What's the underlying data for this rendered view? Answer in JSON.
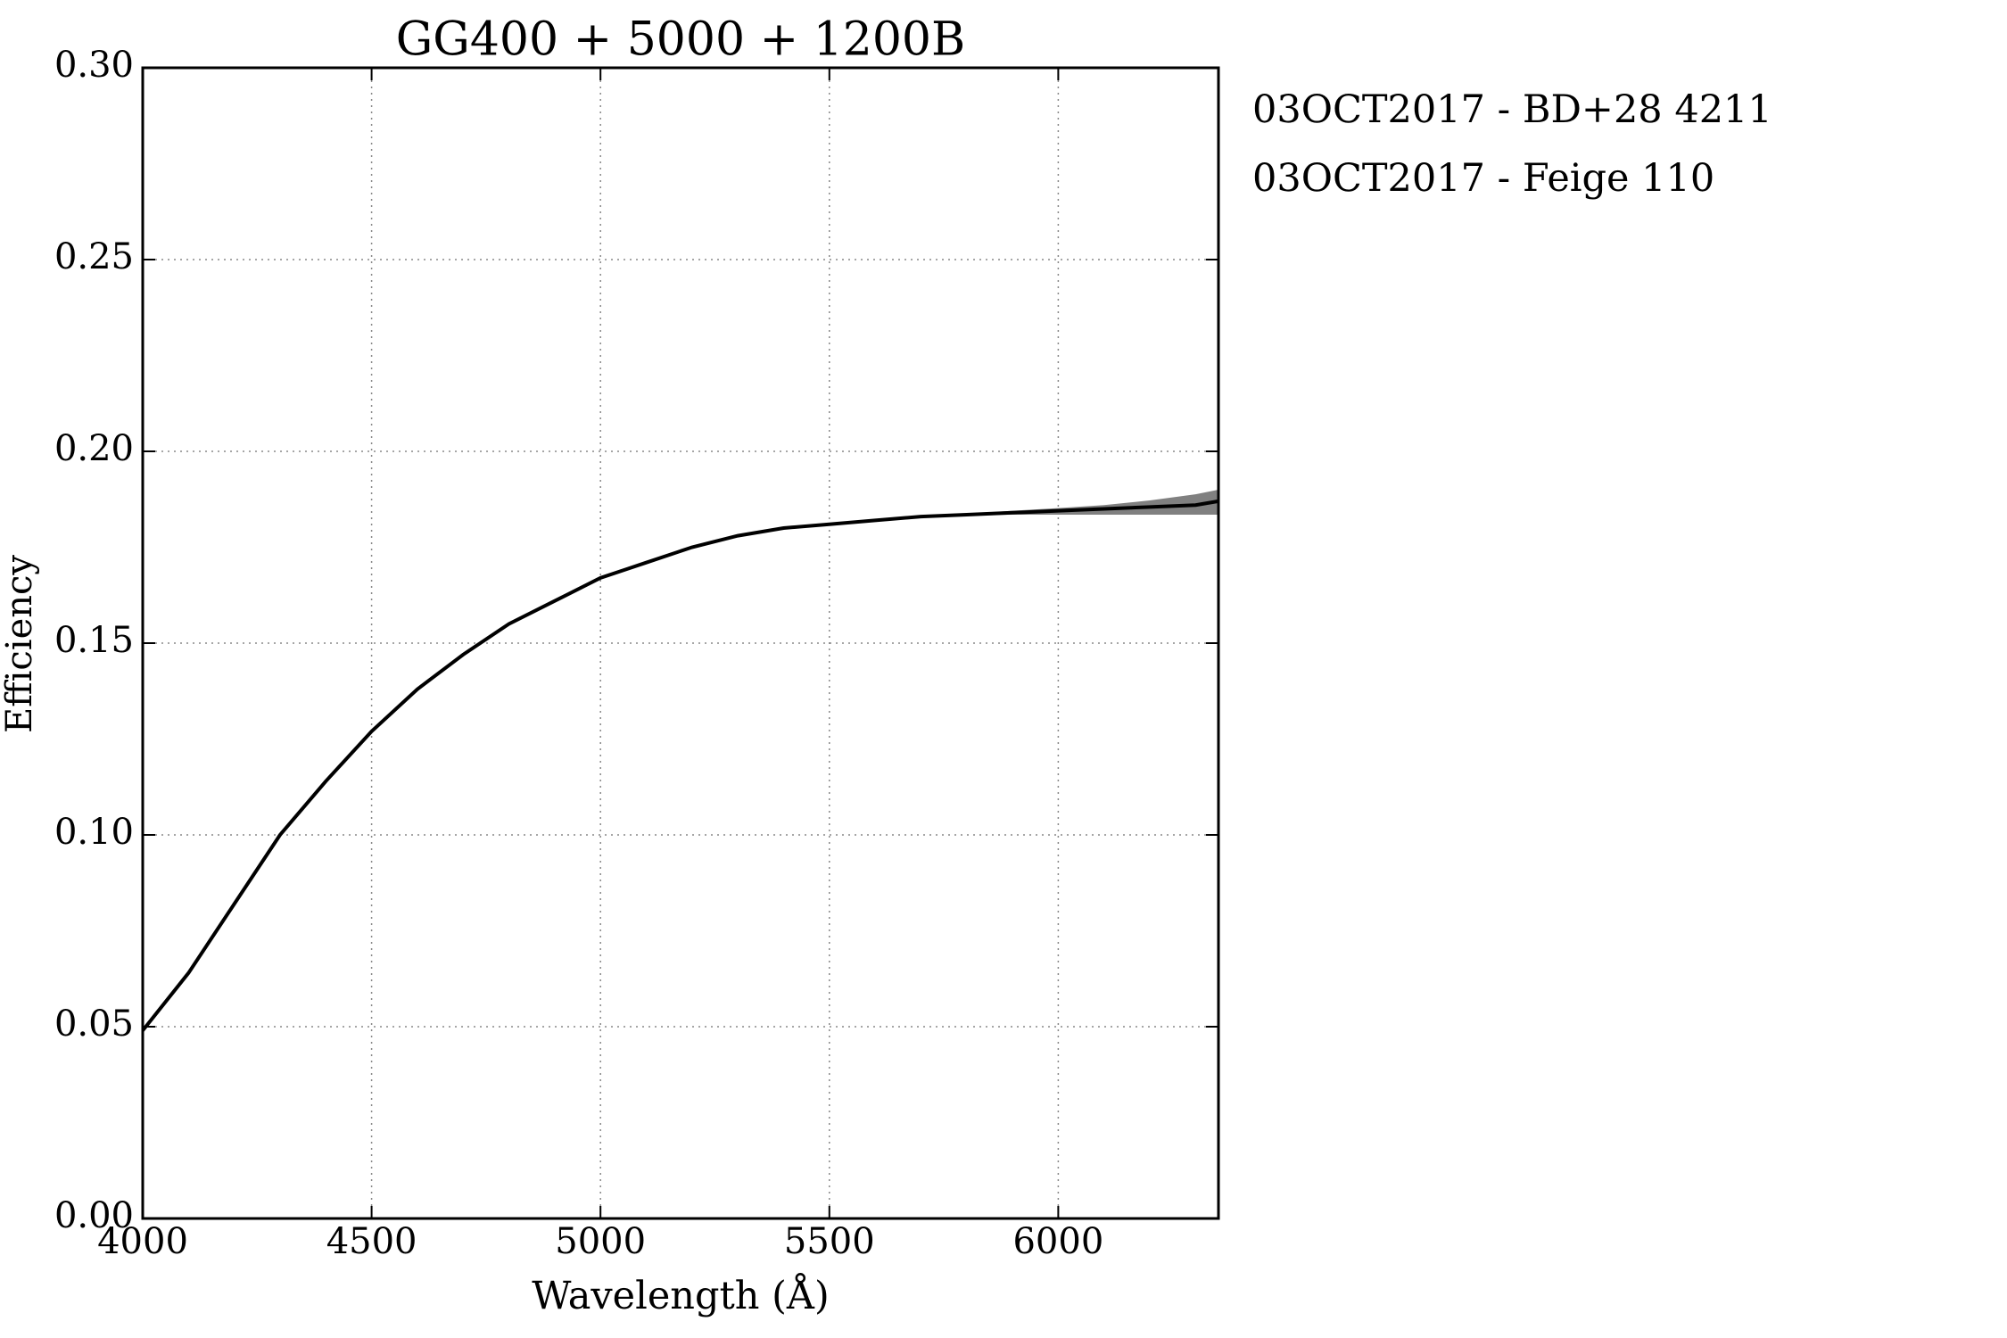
{
  "chart_data": {
    "type": "line",
    "title": "GG400 + 5000 + 1200B",
    "xlabel": "Wavelength (Å)",
    "ylabel": "Efficiency",
    "legend": [
      "03OCT2017 - BD+28 4211",
      "03OCT2017 - Feige 110"
    ],
    "x": [
      4000,
      4100,
      4200,
      4300,
      4400,
      4500,
      4600,
      4700,
      4800,
      4900,
      5000,
      5100,
      5200,
      5300,
      5400,
      5500,
      5600,
      5700,
      5800,
      5900,
      6000,
      6100,
      6200,
      6300,
      6350
    ],
    "series": [
      {
        "color": "#000000",
        "values": [
          0.049,
          0.064,
          0.082,
          0.1,
          0.114,
          0.127,
          0.138,
          0.147,
          0.155,
          0.161,
          0.167,
          0.171,
          0.175,
          0.178,
          0.18,
          0.181,
          0.182,
          0.183,
          0.1835,
          0.184,
          0.1845,
          0.185,
          0.1855,
          0.186,
          0.187
        ]
      }
    ],
    "band": {
      "color": "#808080",
      "lower": [
        null,
        null,
        null,
        null,
        null,
        null,
        null,
        null,
        null,
        null,
        null,
        null,
        null,
        null,
        null,
        null,
        null,
        0.183,
        0.1833,
        0.1835,
        0.1835,
        0.1835,
        0.1835,
        0.1835,
        0.1835
      ],
      "upper": [
        null,
        null,
        null,
        null,
        null,
        null,
        null,
        null,
        null,
        null,
        null,
        null,
        null,
        null,
        null,
        null,
        null,
        0.183,
        0.1837,
        0.1845,
        0.1852,
        0.186,
        0.1872,
        0.1888,
        0.19
      ]
    },
    "xlim": [
      4000,
      6350
    ],
    "ylim": [
      0,
      0.3
    ],
    "xticks": [
      4000,
      4500,
      5000,
      5500,
      6000
    ],
    "yticks": [
      {
        "value": 0,
        "label": "0.00"
      },
      {
        "value": 0.05,
        "label": "0.05"
      },
      {
        "value": 0.1,
        "label": "0.10"
      },
      {
        "value": 0.15,
        "label": "0.15"
      },
      {
        "value": 0.2,
        "label": "0.20"
      },
      {
        "value": 0.25,
        "label": "0.25"
      },
      {
        "value": 0.3,
        "label": "0.30"
      }
    ],
    "grid": true
  }
}
